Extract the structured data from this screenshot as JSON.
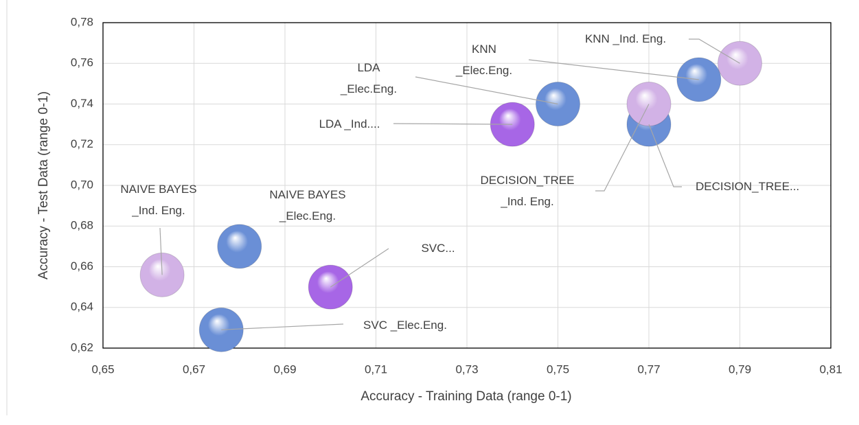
{
  "chart_data": {
    "type": "scatter",
    "x_label": "Accuracy -  Training Data (range 0-1)",
    "y_label": "Accuracy - Test Data (range 0-1)",
    "xlim": [
      0.65,
      0.81
    ],
    "xticks": [
      {
        "value": 0.65,
        "label": "0,65"
      },
      {
        "value": 0.67,
        "label": "0,67"
      },
      {
        "value": 0.69,
        "label": "0,69"
      },
      {
        "value": 0.71,
        "label": "0,71"
      },
      {
        "value": 0.73,
        "label": "0,73"
      },
      {
        "value": 0.75,
        "label": "0,75"
      },
      {
        "value": 0.77,
        "label": "0,77"
      },
      {
        "value": 0.79,
        "label": "0,79"
      },
      {
        "value": 0.81,
        "label": "0,81"
      }
    ],
    "ylim": [
      0.62,
      0.78
    ],
    "yticks": [
      {
        "value": 0.62,
        "label": "0,62"
      },
      {
        "value": 0.64,
        "label": "0,64"
      },
      {
        "value": 0.66,
        "label": "0,66"
      },
      {
        "value": 0.68,
        "label": "0,68"
      },
      {
        "value": 0.7,
        "label": "0,70"
      },
      {
        "value": 0.72,
        "label": "0,72"
      },
      {
        "value": 0.74,
        "label": "0,74"
      },
      {
        "value": 0.76,
        "label": "0,76"
      },
      {
        "value": 0.78,
        "label": "0,78"
      }
    ],
    "grid": true,
    "points": [
      {
        "label": [
          "SVC  _Elec.Eng."
        ],
        "x": 0.676,
        "y": 0.629,
        "color": "#6a8fd6"
      },
      {
        "label": [
          "NAIVE BAYES",
          "_Elec.Eng."
        ],
        "x": 0.68,
        "y": 0.67,
        "color": "#6a8fd6"
      },
      {
        "label": [
          "NAIVE BAYES",
          "_Ind. Eng."
        ],
        "x": 0.663,
        "y": 0.656,
        "color": "#d2b2e6"
      },
      {
        "label": [
          "SVC..."
        ],
        "x": 0.7,
        "y": 0.65,
        "color": "#a766e6"
      },
      {
        "label": [
          "LDA  _Ind...."
        ],
        "x": 0.74,
        "y": 0.73,
        "color": "#a766e6"
      },
      {
        "label": [
          "LDA",
          "_Elec.Eng."
        ],
        "x": 0.75,
        "y": 0.74,
        "color": "#6a8fd6"
      },
      {
        "label": [
          "DECISION_TREE..."
        ],
        "x": 0.77,
        "y": 0.73,
        "color": "#6a8fd6"
      },
      {
        "label": [
          "DECISION_TREE",
          "_Ind. Eng."
        ],
        "x": 0.77,
        "y": 0.74,
        "color": "#d2b2e6"
      },
      {
        "label": [
          "KNN",
          "_Elec.Eng."
        ],
        "x": 0.781,
        "y": 0.752,
        "color": "#6a8fd6"
      },
      {
        "label": [
          "KNN _Ind. Eng."
        ],
        "x": 0.79,
        "y": 0.76,
        "color": "#d2b2e6"
      }
    ]
  }
}
